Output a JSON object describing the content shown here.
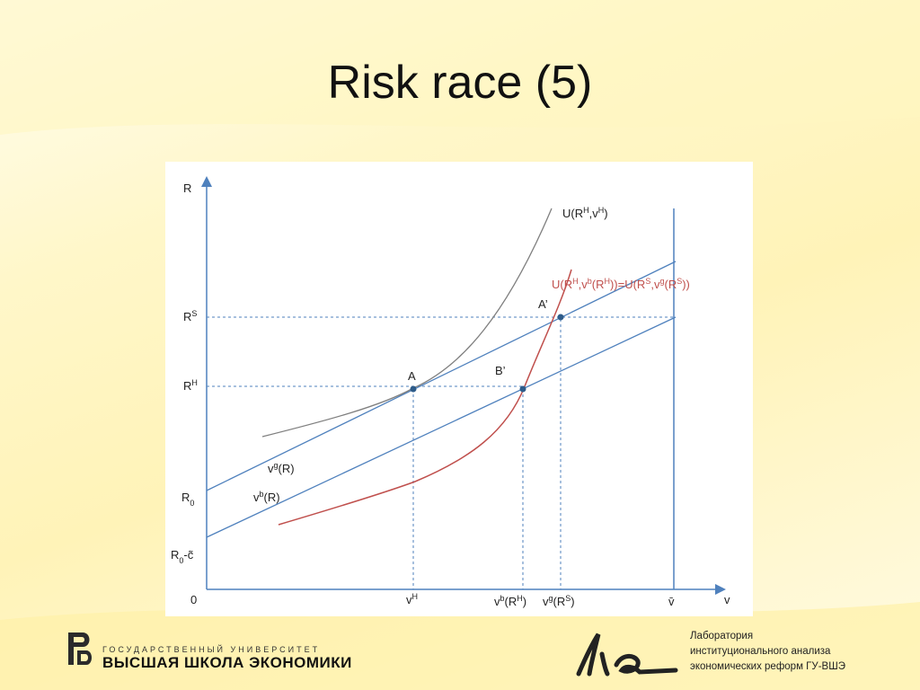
{
  "slide": {
    "title": "Risk race (5)"
  },
  "chart": {
    "y_axis_label": "R",
    "x_axis_label": "v",
    "origin_label": "0",
    "y_ticks": {
      "RS": "R<tspan baseline-shift=\"super\" font-size=\"9\">S</tspan>",
      "RH": "R<tspan baseline-shift=\"super\" font-size=\"9\">H</tspan>",
      "R0": "R<tspan baseline-shift=\"sub\" font-size=\"9\">0</tspan>",
      "R0c": "R<tspan baseline-shift=\"sub\" font-size=\"9\">0</tspan>-c̃"
    },
    "x_ticks": {
      "vH": "v<tspan baseline-shift=\"super\" font-size=\"9\">H</tspan>",
      "vbRH": "v<tspan baseline-shift=\"super\" font-size=\"9\">b</tspan>(R<tspan baseline-shift=\"super\" font-size=\"9\">H</tspan>)",
      "vgRS": "v<tspan baseline-shift=\"super\" font-size=\"9\">g</tspan>(R<tspan baseline-shift=\"super\" font-size=\"9\">S</tspan>)",
      "vbar": "v̄"
    },
    "curve_labels": {
      "U_RH_vH": "U(R<tspan baseline-shift=\"super\" font-size=\"9\">H</tspan>,v<tspan baseline-shift=\"super\" font-size=\"9\">H</tspan>)",
      "U_equal": "U(R<tspan baseline-shift=\"super\" font-size=\"9\">H</tspan>,v<tspan baseline-shift=\"super\" font-size=\"9\">b</tspan>(R<tspan baseline-shift=\"super\" font-size=\"9\">H</tspan>))=U(R<tspan baseline-shift=\"super\" font-size=\"9\">S</tspan>,v<tspan baseline-shift=\"super\" font-size=\"9\">g</tspan>(R<tspan baseline-shift=\"super\" font-size=\"9\">S</tspan>))",
      "vg": "v<tspan baseline-shift=\"super\" font-size=\"9\">g</tspan>(R)",
      "vb": "v<tspan baseline-shift=\"super\" font-size=\"9\">b</tspan>(R)"
    },
    "points": {
      "A": "A",
      "A_prime": "A’",
      "B_prime": "B’"
    },
    "colors": {
      "axis": "#4f81bd",
      "line": "#4f81bd",
      "indiff": "#7f7f7f",
      "red_curve": "#c0504d",
      "dot": "#2e5c8a"
    }
  },
  "footer": {
    "hse_line1": "ГОСУДАРСТВЕННЫЙ УНИВЕРСИТЕТ",
    "hse_line2": "ВЫСШАЯ ШКОЛА ЭКОНОМИКИ",
    "lab_text": "Лаборатория\nинституционального анализа\nэкономических реформ ГУ-ВШЭ"
  }
}
